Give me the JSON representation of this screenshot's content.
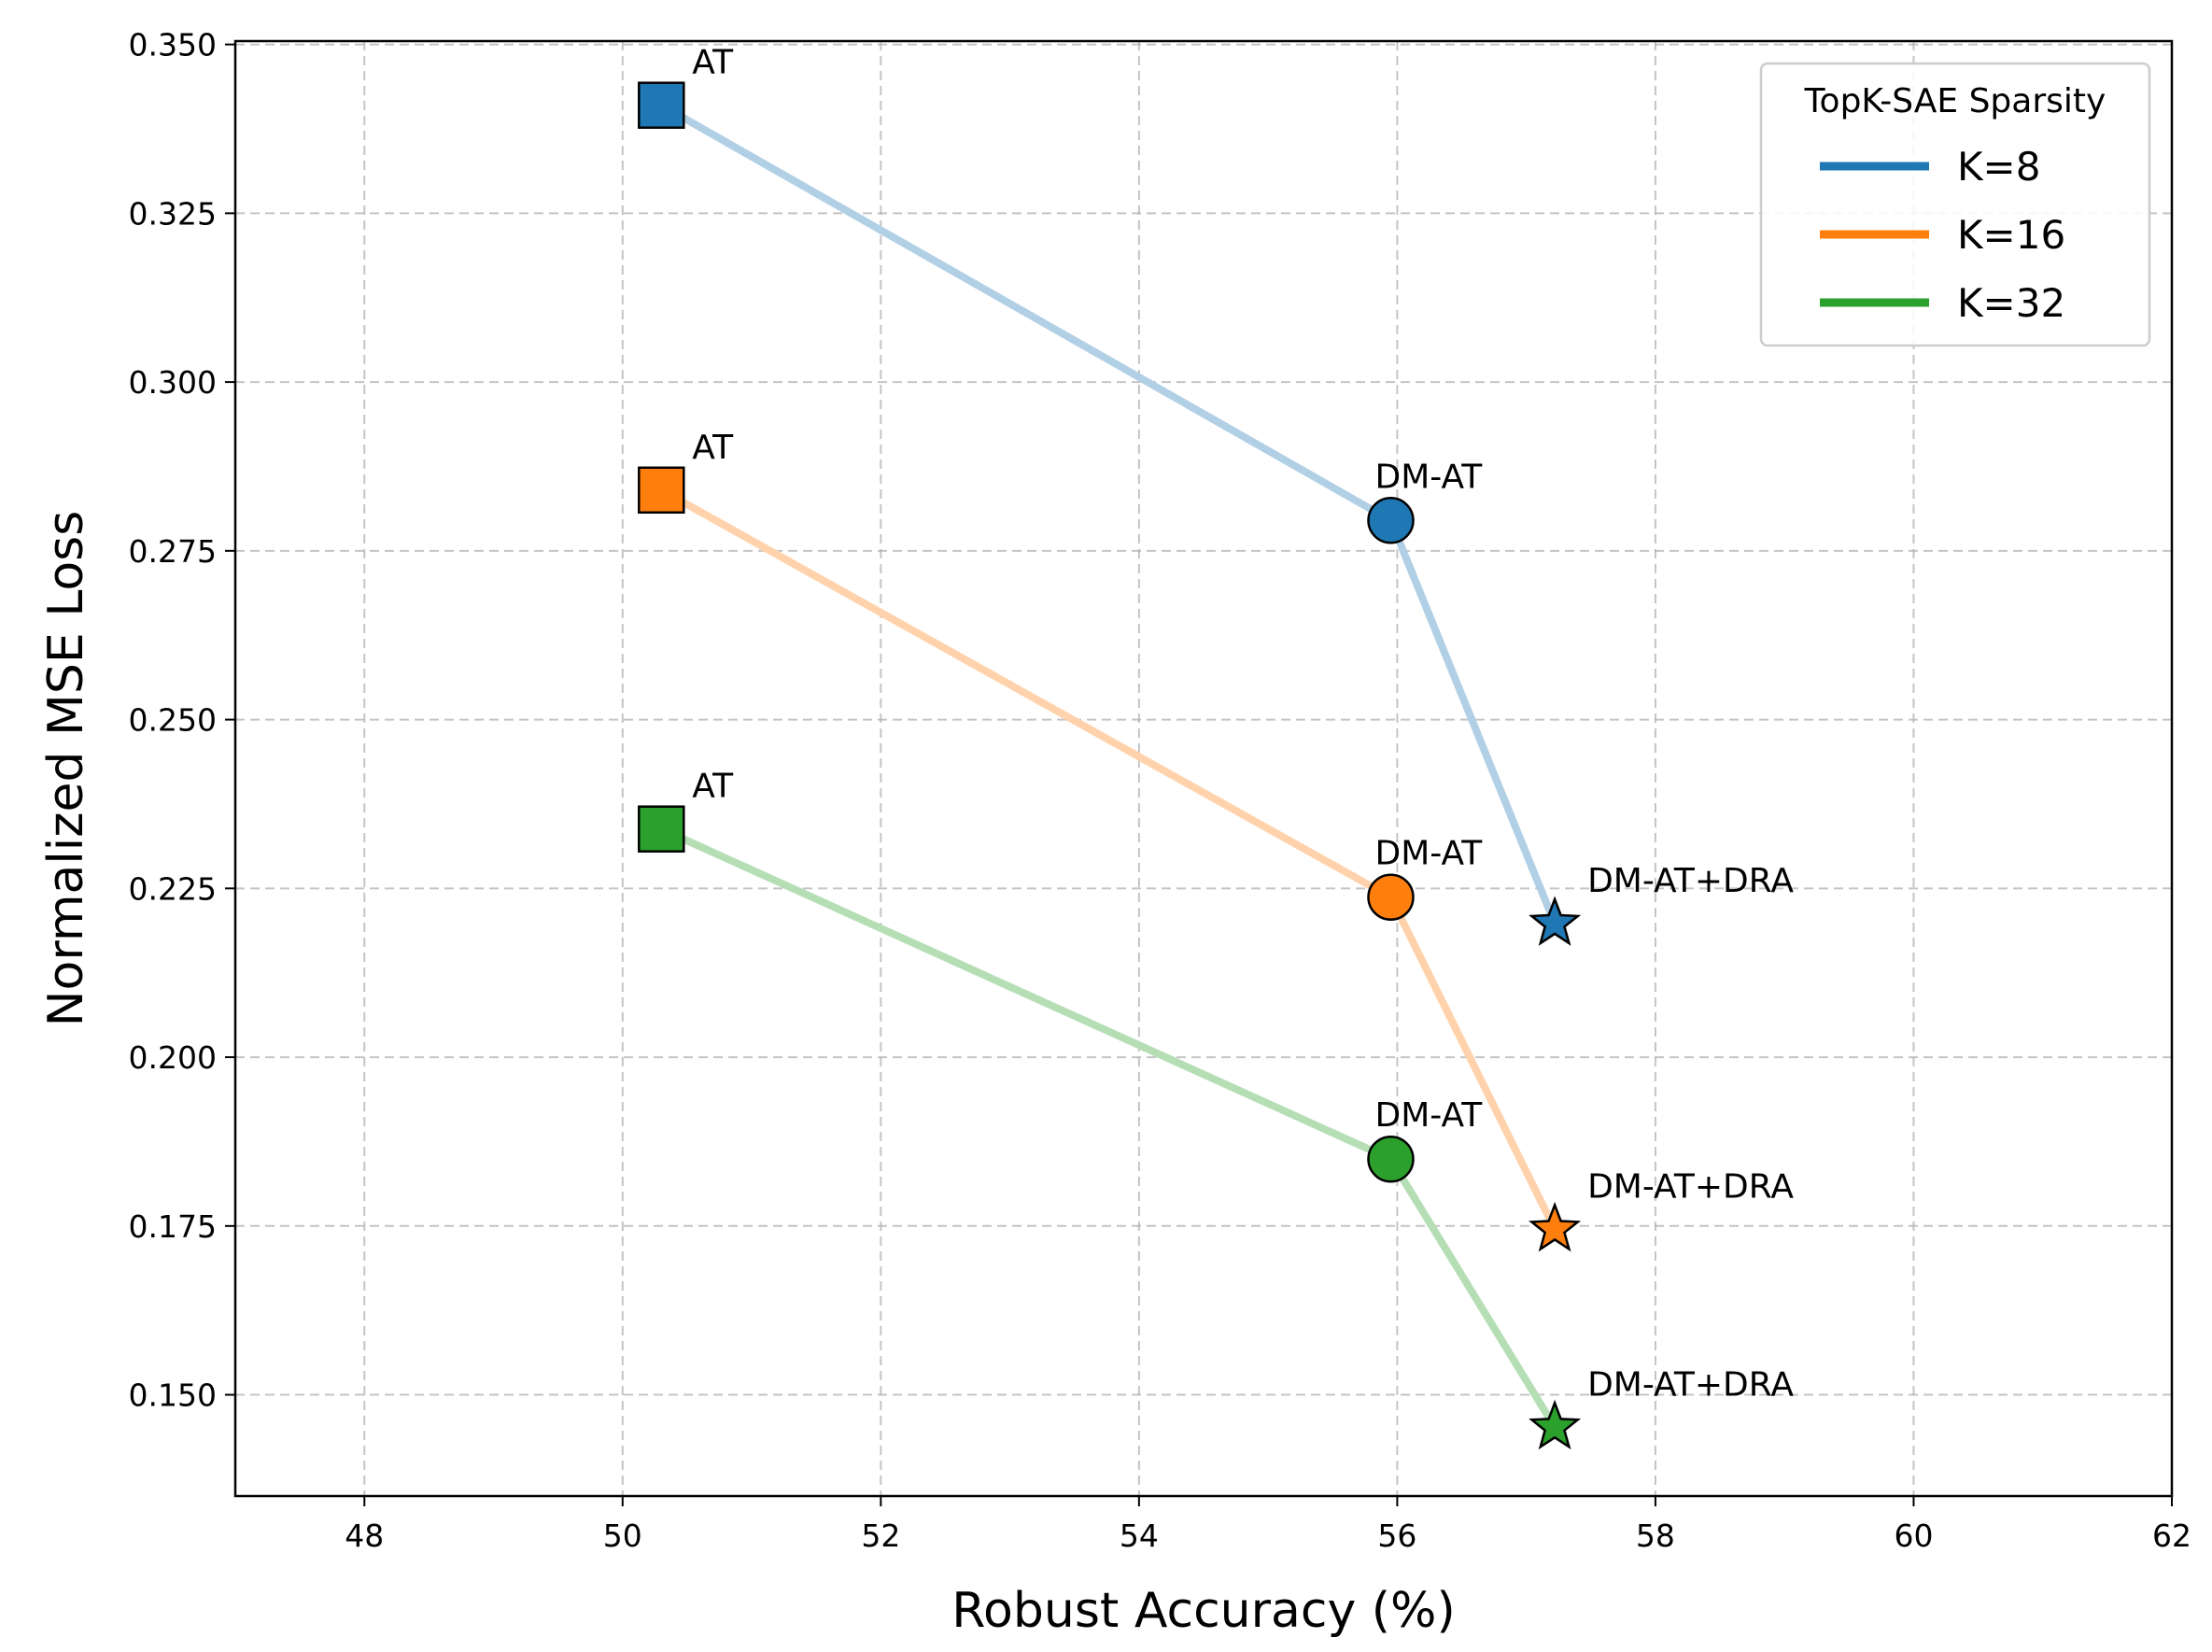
{
  "chart_data": {
    "type": "line",
    "title": "",
    "xlabel": "Robust Accuracy (%)",
    "ylabel": "Normalized MSE Loss",
    "xlim": [
      47,
      62
    ],
    "ylim": [
      0.135,
      0.3505
    ],
    "xticks": [
      48,
      50,
      52,
      54,
      56,
      58,
      60,
      62
    ],
    "yticks": [
      0.15,
      0.175,
      0.2,
      0.225,
      0.25,
      0.275,
      0.3,
      0.325,
      0.35
    ],
    "xtick_labels": [
      "48",
      "50",
      "52",
      "54",
      "56",
      "58",
      "60",
      "62"
    ],
    "ytick_labels": [
      "0.150",
      "0.175",
      "0.200",
      "0.225",
      "0.250",
      "0.275",
      "0.300",
      "0.325",
      "0.350"
    ],
    "grid": true,
    "legend": {
      "title": "TopK-SAE Sparsity",
      "position": "top-right"
    },
    "methods": [
      "AT",
      "DM-AT",
      "DM-AT+DRA"
    ],
    "markers": [
      "square",
      "circle",
      "star"
    ],
    "series": [
      {
        "name": "K=8",
        "color": "#1f77b4",
        "x": [
          50.3,
          55.95,
          57.22
        ],
        "y": [
          0.341,
          0.2795,
          0.2198
        ]
      },
      {
        "name": "K=16",
        "color": "#ff7f0e",
        "x": [
          50.3,
          55.95,
          57.22
        ],
        "y": [
          0.284,
          0.2237,
          0.1745
        ]
      },
      {
        "name": "K=32",
        "color": "#2ca02c",
        "x": [
          50.3,
          55.95,
          57.22
        ],
        "y": [
          0.2338,
          0.1849,
          0.1452
        ]
      }
    ]
  }
}
